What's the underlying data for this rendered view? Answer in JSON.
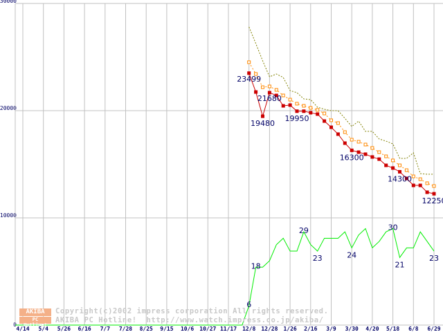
{
  "watermark": {
    "logo_top": "AKIBA",
    "logo_bottom": "PC Hotline!",
    "line1": "Copyright(c)2002 impress corporation All rights reserved.",
    "line2": "AKIBA PC Hotline!  http://www.watch.impress.co.jp/akiba/"
  },
  "chart_data": {
    "type": "line",
    "title": "",
    "xlabel": "",
    "ylabel": "",
    "ylim": [
      0,
      30000
    ],
    "yticks": [
      "0",
      "10000",
      "20000",
      "30000"
    ],
    "x_unit": "weeks since 4/14",
    "xlim": [
      -1,
      62
    ],
    "xticks": [
      "4/14",
      "5/4",
      "5/26",
      "6/16",
      "7/7",
      "7/28",
      "8/25",
      "9/15",
      "10/6",
      "10/27",
      "11/17",
      "12/8",
      "12/28",
      "1/26",
      "2/16",
      "3/9",
      "3/30",
      "4/20",
      "5/18",
      "6/8",
      "6/29"
    ],
    "grid": true,
    "colors": {
      "min_price": "#cc0000",
      "avg_price": "#ff8800",
      "max_price": "#808000",
      "shop_count": "#00ee00",
      "labels": "#000066",
      "grid": "#c0c0c0"
    },
    "x": [
      33,
      34,
      35,
      36,
      37,
      38,
      39,
      40,
      41,
      42,
      43,
      44,
      45,
      46,
      47,
      48,
      49,
      50,
      51,
      52,
      53,
      54,
      55,
      56,
      57,
      58,
      59,
      60
    ],
    "series": [
      {
        "name": "min_price",
        "values": [
          23499,
          21740,
          19480,
          21680,
          21420,
          20450,
          20520,
          19950,
          19950,
          19810,
          19680,
          19030,
          18450,
          17810,
          16970,
          16300,
          16130,
          15940,
          15680,
          15480,
          14900,
          14650,
          14300,
          13680,
          13030,
          13030,
          12390,
          12250
        ]
      },
      {
        "name": "avg_price",
        "values": [
          24520,
          23420,
          22190,
          22260,
          21940,
          21420,
          21030,
          20650,
          20450,
          20260,
          20070,
          19740,
          19100,
          18840,
          18000,
          17290,
          17100,
          16840,
          16520,
          16130,
          15740,
          15360,
          14900,
          14450,
          13870,
          13610,
          13230,
          12970
        ]
      },
      {
        "name": "max_price",
        "values": [
          27810,
          26260,
          24650,
          23160,
          23420,
          23100,
          21870,
          21680,
          21100,
          21030,
          20320,
          20130,
          20000,
          20000,
          19290,
          18520,
          19030,
          18070,
          18070,
          17360,
          17160,
          16900,
          15550,
          15550,
          16070,
          14130,
          14070,
          14070
        ]
      },
      {
        "name": "shop_count",
        "scale": 300,
        "zero_from_week": 0,
        "values": [
          6,
          18,
          18,
          20,
          25,
          27,
          23,
          23,
          29,
          25,
          23,
          27,
          27,
          27,
          29,
          24,
          28,
          30,
          24,
          26,
          29,
          30,
          21,
          24,
          24,
          29,
          26,
          23
        ]
      }
    ],
    "annotations": [
      {
        "series": "min_price",
        "index": 0,
        "text": "23499"
      },
      {
        "series": "min_price",
        "index": 2,
        "text": "19480"
      },
      {
        "series": "min_price",
        "index": 3,
        "text": "21680"
      },
      {
        "series": "min_price",
        "index": 7,
        "text": "19950"
      },
      {
        "series": "min_price",
        "index": 15,
        "text": "16300"
      },
      {
        "series": "min_price",
        "index": 22,
        "text": "14300"
      },
      {
        "series": "min_price",
        "index": 27,
        "text": "12250"
      },
      {
        "series": "shop_count",
        "index": 0,
        "text": "6"
      },
      {
        "series": "shop_count",
        "index": 1,
        "text": "18"
      },
      {
        "series": "shop_count",
        "index": 8,
        "text": "29"
      },
      {
        "series": "shop_count",
        "index": 10,
        "text": "23"
      },
      {
        "series": "shop_count",
        "index": 15,
        "text": "24"
      },
      {
        "series": "shop_count",
        "index": 21,
        "text": "30"
      },
      {
        "series": "shop_count",
        "index": 22,
        "text": "21"
      },
      {
        "series": "shop_count",
        "index": 27,
        "text": "23"
      }
    ]
  }
}
